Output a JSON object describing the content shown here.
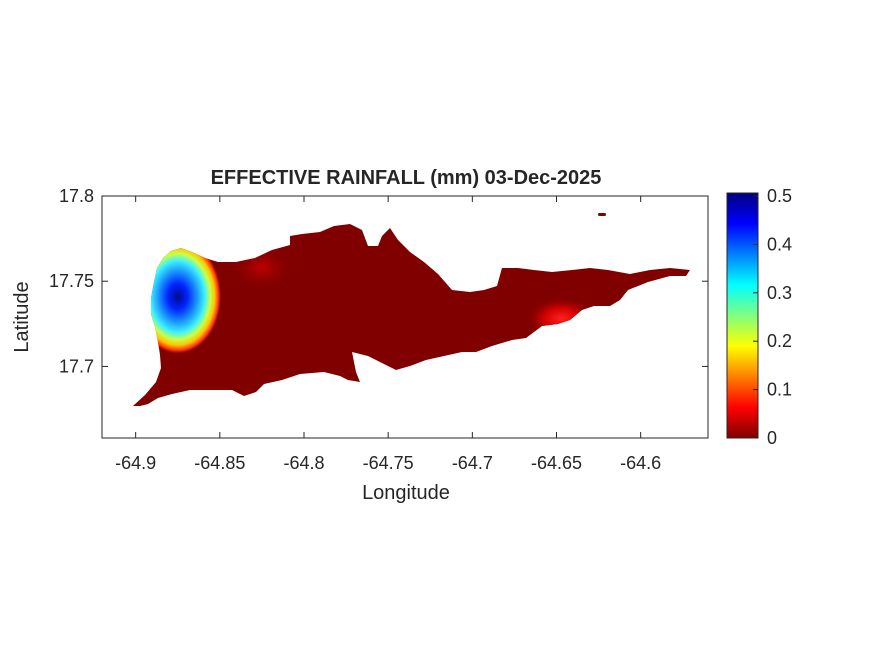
{
  "map": {
    "title": "EFFECTIVE RAINFALL (mm) 03-Dec-2025",
    "xlabel": "Longitude",
    "ylabel": "Latitude",
    "xlim": [
      -64.92,
      -64.56
    ],
    "ylim": [
      17.658,
      17.8
    ],
    "xticks": [
      {
        "value": -64.9,
        "label": "-64.9"
      },
      {
        "value": -64.85,
        "label": "-64.85"
      },
      {
        "value": -64.8,
        "label": "-64.8"
      },
      {
        "value": -64.75,
        "label": "-64.75"
      },
      {
        "value": -64.7,
        "label": "-64.7"
      },
      {
        "value": -64.65,
        "label": "-64.65"
      },
      {
        "value": -64.6,
        "label": "-64.6"
      }
    ],
    "yticks": [
      {
        "value": 17.8,
        "label": "17.8"
      },
      {
        "value": 17.75,
        "label": "17.75"
      },
      {
        "value": 17.7,
        "label": "17.7"
      }
    ],
    "land_color": "#800000",
    "colormap": "jet",
    "colorbar": {
      "range": [
        0,
        0.5
      ],
      "ticks": [
        {
          "value": 0.5,
          "label": "0.5"
        },
        {
          "value": 0.4,
          "label": "0.4"
        },
        {
          "value": 0.3,
          "label": "0.3"
        },
        {
          "value": 0.2,
          "label": "0.2"
        },
        {
          "value": 0.1,
          "label": "0.1"
        },
        {
          "value": 0,
          "label": "0"
        }
      ]
    },
    "rainfall_peaks": [
      {
        "lon": -64.875,
        "lat": 17.741,
        "value": 0.5
      },
      {
        "lon": -64.647,
        "lat": 17.728,
        "value": 0.09
      },
      {
        "lon": -64.825,
        "lat": 17.758,
        "value": 0.04
      }
    ]
  }
}
